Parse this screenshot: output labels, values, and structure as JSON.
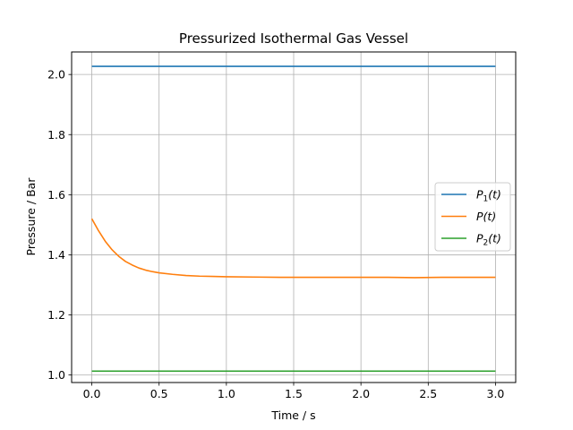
{
  "chart_data": {
    "type": "line",
    "title": "Pressurized Isothermal Gas Vessel",
    "xlabel": "Time / s",
    "ylabel": "Pressure / Bar",
    "xlim": [
      -0.15,
      3.15
    ],
    "ylim": [
      0.975,
      2.075
    ],
    "xticks": [
      0.0,
      0.5,
      1.0,
      1.5,
      2.0,
      2.5,
      3.0
    ],
    "xtick_labels": [
      "0.0",
      "0.5",
      "1.0",
      "1.5",
      "2.0",
      "2.5",
      "3.0"
    ],
    "yticks": [
      1.0,
      1.2,
      1.4,
      1.6,
      1.8,
      2.0
    ],
    "ytick_labels": [
      "1.0",
      "1.2",
      "1.4",
      "1.6",
      "1.8",
      "2.0"
    ],
    "grid": true,
    "legend_position": "center-right",
    "series": [
      {
        "name": "P_1(t)",
        "label_main": "P",
        "label_sub": "1",
        "label_tail": "(t)",
        "color": "#1f77b4",
        "x": [
          0.0,
          3.0
        ],
        "y": [
          2.027,
          2.027
        ]
      },
      {
        "name": "P(t)",
        "label_main": "P",
        "label_sub": "",
        "label_tail": "(t)",
        "color": "#ff7f0e",
        "x": [
          0.0,
          0.05,
          0.1,
          0.15,
          0.2,
          0.25,
          0.3,
          0.35,
          0.4,
          0.45,
          0.5,
          0.6,
          0.7,
          0.8,
          0.9,
          1.0,
          1.2,
          1.4,
          1.6,
          1.8,
          2.0,
          2.2,
          2.4,
          2.6,
          2.8,
          3.0
        ],
        "y": [
          1.52,
          1.48,
          1.445,
          1.417,
          1.395,
          1.378,
          1.366,
          1.356,
          1.349,
          1.344,
          1.34,
          1.335,
          1.331,
          1.329,
          1.328,
          1.327,
          1.326,
          1.325,
          1.325,
          1.325,
          1.325,
          1.325,
          1.324,
          1.325,
          1.325,
          1.325
        ]
      },
      {
        "name": "P_2(t)",
        "label_main": "P",
        "label_sub": "2",
        "label_tail": "(t)",
        "color": "#2ca02c",
        "x": [
          0.0,
          3.0
        ],
        "y": [
          1.013,
          1.013
        ]
      }
    ]
  }
}
